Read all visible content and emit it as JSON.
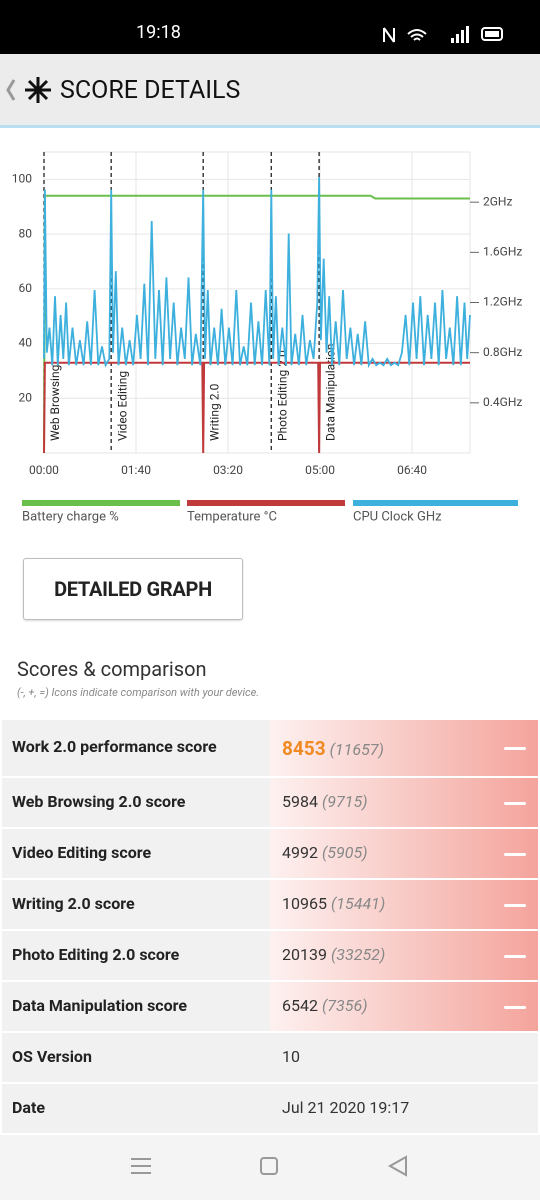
{
  "status_bar": {
    "time": "19:18"
  },
  "header": {
    "title": "SCORE DETAILS"
  },
  "chart_data": {
    "type": "line",
    "xlim": [
      0,
      463
    ],
    "xticks": [
      {
        "value": 0,
        "label": "00:00"
      },
      {
        "value": 100,
        "label": "01:40"
      },
      {
        "value": 200,
        "label": "03:20"
      },
      {
        "value": 300,
        "label": "05:00"
      },
      {
        "value": 400,
        "label": "06:40"
      }
    ],
    "ylim": [
      0,
      110
    ],
    "yticks": [
      20,
      40,
      60,
      80,
      100
    ],
    "y2lim": [
      0,
      2.4
    ],
    "y2ticks": [
      {
        "value": 0.4,
        "label": "0.4GHz"
      },
      {
        "value": 0.8,
        "label": "0.8GHz"
      },
      {
        "value": 1.2,
        "label": "1.2GHz"
      },
      {
        "value": 1.6,
        "label": "1.6GHz"
      },
      {
        "value": 2,
        "label": "2GHz"
      }
    ],
    "grid": true,
    "annotations": [
      {
        "x": 0,
        "text": "Web Browsing"
      },
      {
        "x": 73,
        "text": "Video Editing"
      },
      {
        "x": 173,
        "text": "Writing 2.0"
      },
      {
        "x": 247,
        "text": "Photo Editing 2.0"
      },
      {
        "x": 299,
        "text": "Data Manipulation"
      }
    ],
    "series": [
      {
        "name": "Battery charge %",
        "color": "#6abf4b",
        "x": [
          0,
          1,
          355,
          360,
          463
        ],
        "values": [
          0,
          94,
          94,
          93,
          93
        ]
      },
      {
        "name": "Temperature °C",
        "color": "#c0393b",
        "x": [
          0,
          1,
          172,
          173,
          174,
          298,
          299,
          300,
          463
        ],
        "values": [
          0,
          33,
          33,
          0,
          33,
          33,
          0,
          33,
          33
        ]
      },
      {
        "name": "CPU Clock GHz",
        "color": "#3db0de",
        "axis": "y2",
        "x": [
          0,
          1,
          3,
          6,
          9,
          12,
          15,
          18,
          21,
          24,
          27,
          31,
          35,
          39,
          43,
          47,
          51,
          55,
          59,
          63,
          67,
          71,
          73,
          75,
          78,
          81,
          85,
          89,
          93,
          97,
          101,
          105,
          109,
          113,
          117,
          121,
          125,
          129,
          133,
          137,
          141,
          145,
          149,
          153,
          157,
          161,
          165,
          170,
          173,
          175,
          178,
          181,
          185,
          189,
          193,
          197,
          201,
          205,
          209,
          213,
          217,
          221,
          225,
          229,
          233,
          237,
          241,
          245,
          247,
          249,
          252,
          255,
          259,
          263,
          266,
          269,
          273,
          277,
          281,
          285,
          289,
          293,
          297,
          299,
          301,
          304,
          307,
          310,
          313,
          317,
          321,
          325,
          329,
          333,
          337,
          341,
          345,
          349,
          353,
          357,
          361,
          365,
          369,
          373,
          377,
          381,
          385,
          389,
          393,
          397,
          401,
          405,
          409,
          413,
          417,
          421,
          425,
          429,
          433,
          437,
          441,
          445,
          449,
          453,
          457,
          460,
          463
        ],
        "values": [
          0.75,
          2.1,
          0.8,
          1.0,
          0.7,
          1.25,
          0.7,
          1.1,
          0.75,
          1.2,
          0.7,
          1.0,
          0.7,
          0.9,
          0.7,
          1.05,
          0.7,
          1.3,
          0.7,
          0.85,
          0.7,
          0.75,
          2.1,
          0.8,
          1.45,
          0.7,
          1.0,
          0.7,
          0.9,
          0.7,
          1.1,
          0.75,
          1.35,
          0.7,
          1.85,
          0.75,
          1.3,
          0.7,
          1.4,
          0.75,
          1.2,
          0.7,
          1.0,
          0.75,
          1.4,
          0.7,
          0.95,
          0.7,
          2.1,
          0.75,
          1.3,
          0.7,
          1.0,
          0.7,
          1.15,
          0.7,
          1.0,
          0.7,
          1.3,
          0.7,
          0.85,
          0.7,
          1.2,
          0.7,
          1.05,
          0.7,
          1.3,
          0.7,
          2.1,
          0.75,
          1.25,
          0.7,
          1.0,
          0.7,
          1.75,
          0.7,
          0.95,
          0.7,
          1.1,
          0.7,
          0.9,
          0.75,
          1.2,
          2.2,
          0.9,
          1.55,
          0.8,
          1.25,
          0.7,
          1.05,
          0.7,
          1.3,
          0.75,
          1.0,
          0.7,
          0.95,
          0.7,
          1.05,
          0.7,
          0.75,
          0.7,
          0.72,
          0.7,
          0.75,
          0.7,
          0.72,
          0.7,
          0.8,
          1.1,
          0.7,
          1.2,
          0.75,
          1.25,
          0.7,
          1.1,
          0.75,
          1.2,
          0.7,
          1.3,
          0.75,
          1.0,
          0.7,
          1.25,
          0.7,
          1.2,
          0.75,
          1.1
        ]
      }
    ]
  },
  "button": "DETAILED GRAPH",
  "scores": {
    "title": "Scores & comparison",
    "note": "(-, +, =) Icons indicate comparison with your device.",
    "rows": [
      {
        "name": "Work 2.0 performance score",
        "score": 8453,
        "comparison": "(11657)"
      },
      {
        "name": "Web Browsing 2.0 score",
        "score": 5984,
        "comparison": "(9715)"
      },
      {
        "name": "Video Editing score",
        "score": 4992,
        "comparison": "(5905)"
      },
      {
        "name": "Writing 2.0 score",
        "score": 10965,
        "comparison": "(15441)"
      },
      {
        "name": "Photo Editing 2.0 score",
        "score": 20139,
        "comparison": "(33252)"
      },
      {
        "name": "Data Manipulation score",
        "score": 6542,
        "comparison": "(7356)"
      }
    ],
    "info": [
      {
        "name": "OS Version",
        "value": 10
      },
      {
        "name": "Date",
        "value": "Jul 21 2020 19:17"
      }
    ]
  }
}
